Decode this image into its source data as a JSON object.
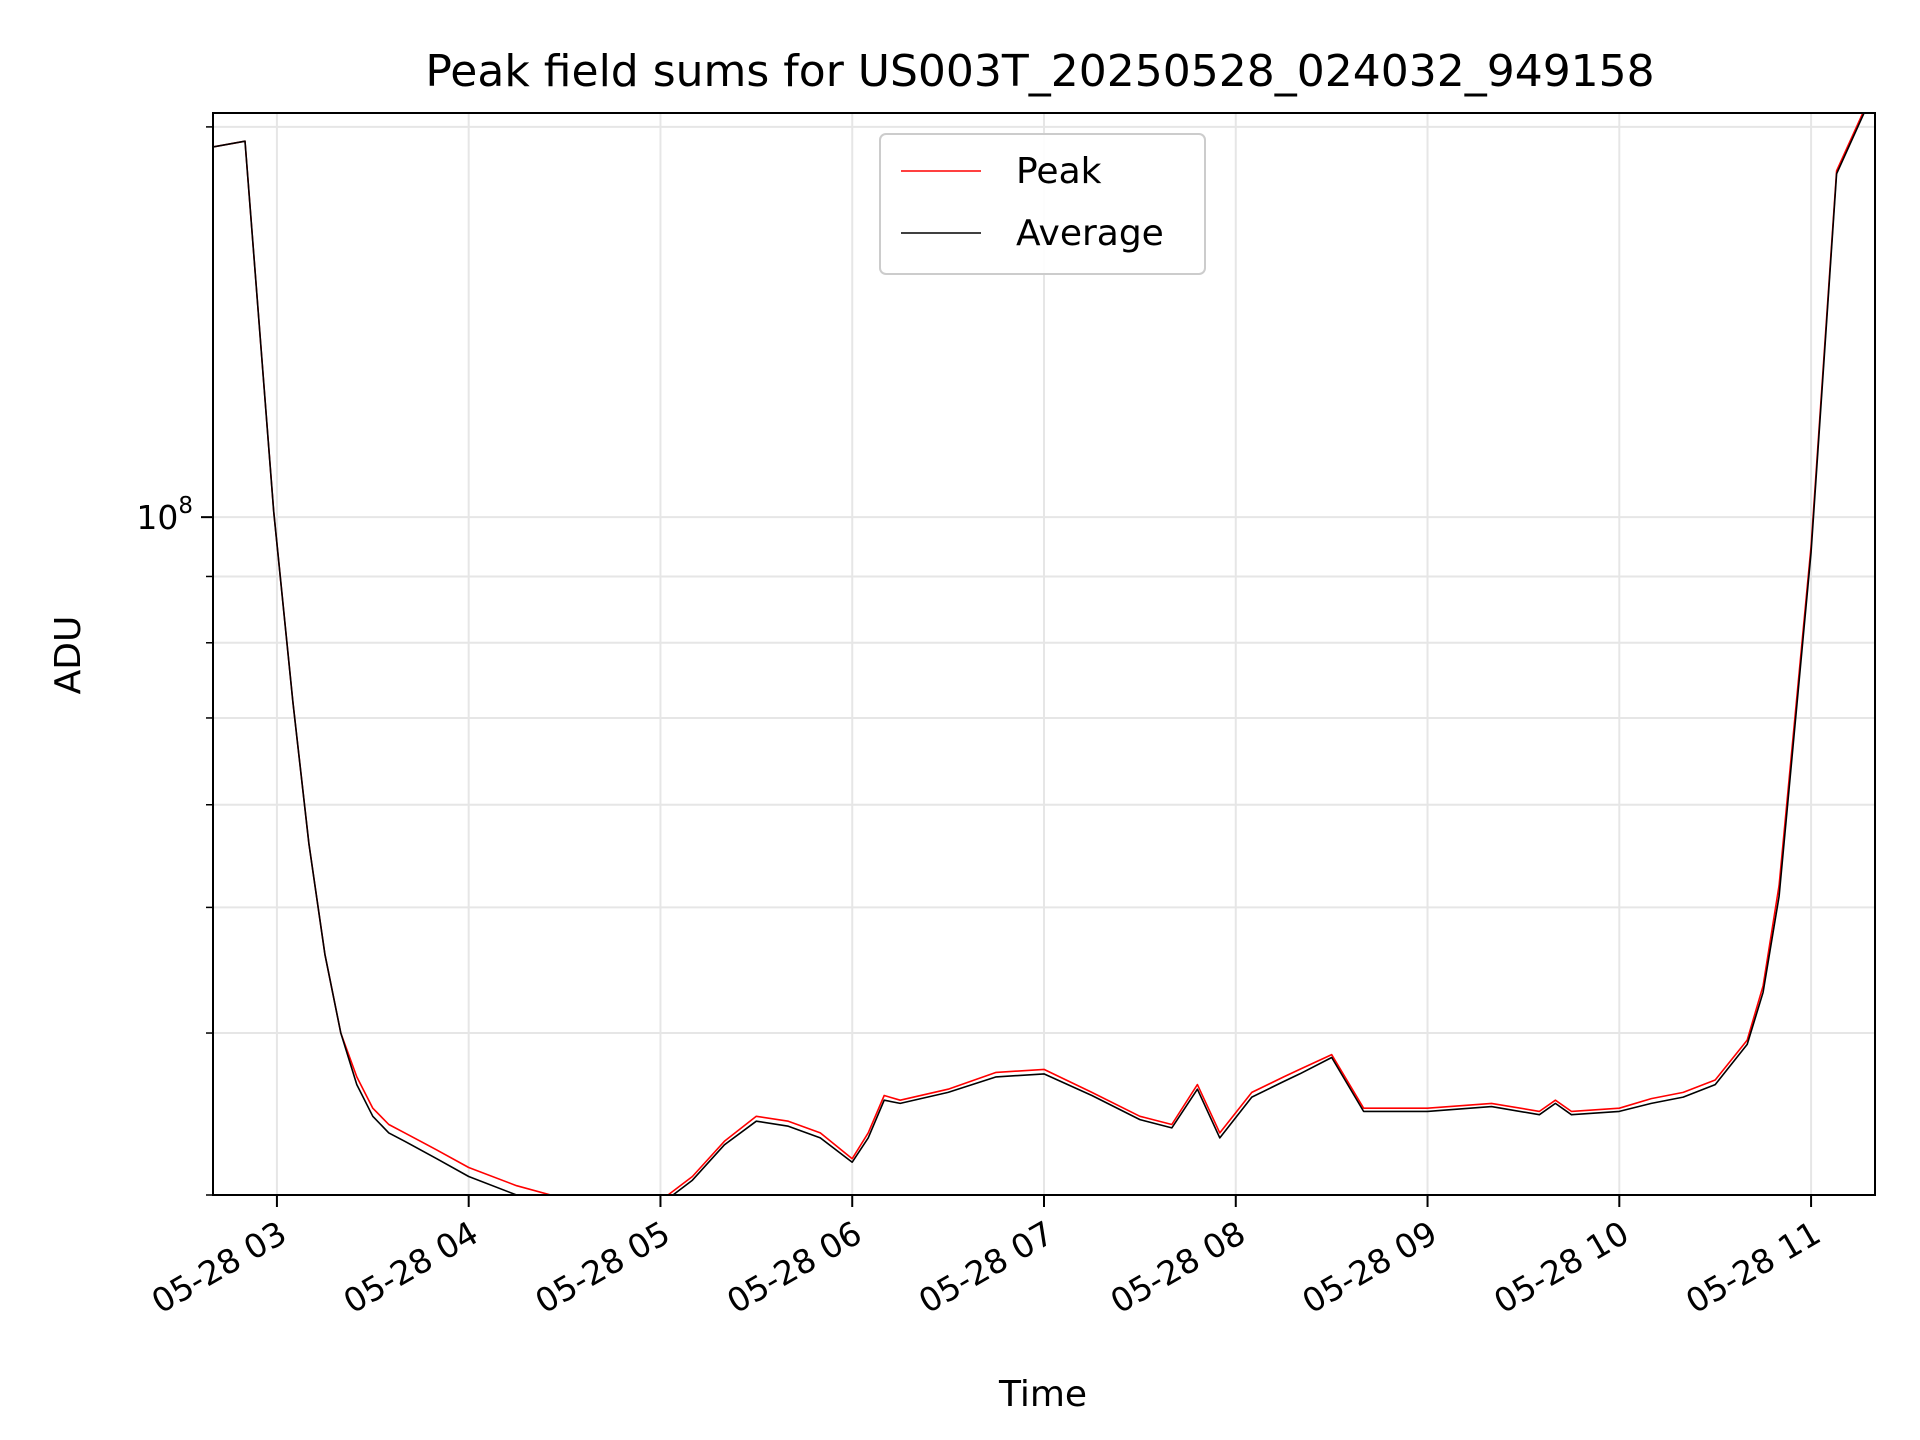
{
  "chart_data": {
    "type": "line",
    "title": "Peak field sums for US003T_20250528_024032_949158",
    "xlabel": "Time",
    "ylabel": "ADU",
    "y_scale": "log",
    "grid": true,
    "legend": "top-center",
    "xlim": [
      "2025-05-28T02:40",
      "2025-05-28T11:20"
    ],
    "ylim": [
      30000000,
      205000000
    ],
    "x_ticks": [
      {
        "t": "2025-05-28T03:00",
        "label": "05-28 03"
      },
      {
        "t": "2025-05-28T04:00",
        "label": "05-28 04"
      },
      {
        "t": "2025-05-28T05:00",
        "label": "05-28 05"
      },
      {
        "t": "2025-05-28T06:00",
        "label": "05-28 06"
      },
      {
        "t": "2025-05-28T07:00",
        "label": "05-28 07"
      },
      {
        "t": "2025-05-28T08:00",
        "label": "05-28 08"
      },
      {
        "t": "2025-05-28T09:00",
        "label": "05-28 09"
      },
      {
        "t": "2025-05-28T10:00",
        "label": "05-28 10"
      },
      {
        "t": "2025-05-28T11:00",
        "label": "05-28 11"
      }
    ],
    "y_ticks": [
      {
        "value": 100000000,
        "label": "10",
        "exp": "8"
      }
    ],
    "y_minor_ticks": [
      30000000,
      40000000,
      50000000,
      60000000,
      70000000,
      80000000,
      90000000,
      200000000
    ],
    "series": [
      {
        "name": "Peak",
        "color": "#ff0000",
        "x": [
          "2025-05-28T02:40",
          "2025-05-28T02:50",
          "2025-05-28T02:59",
          "2025-05-28T03:05",
          "2025-05-28T03:10",
          "2025-05-28T03:15",
          "2025-05-28T03:20",
          "2025-05-28T03:25",
          "2025-05-28T03:30",
          "2025-05-28T03:35",
          "2025-05-28T03:40",
          "2025-05-28T03:50",
          "2025-05-28T04:00",
          "2025-05-28T04:15",
          "2025-05-28T04:30",
          "2025-05-28T04:45",
          "2025-05-28T05:00",
          "2025-05-28T05:10",
          "2025-05-28T05:20",
          "2025-05-28T05:30",
          "2025-05-28T05:40",
          "2025-05-28T05:50",
          "2025-05-28T06:00",
          "2025-05-28T06:05",
          "2025-05-28T06:10",
          "2025-05-28T06:15",
          "2025-05-28T06:30",
          "2025-05-28T06:45",
          "2025-05-28T07:00",
          "2025-05-28T07:15",
          "2025-05-28T07:30",
          "2025-05-28T07:40",
          "2025-05-28T07:48",
          "2025-05-28T07:55",
          "2025-05-28T08:05",
          "2025-05-28T08:15",
          "2025-05-28T08:20",
          "2025-05-28T08:30",
          "2025-05-28T08:40",
          "2025-05-28T09:00",
          "2025-05-28T09:20",
          "2025-05-28T09:35",
          "2025-05-28T09:40",
          "2025-05-28T09:45",
          "2025-05-28T10:00",
          "2025-05-28T10:10",
          "2025-05-28T10:20",
          "2025-05-28T10:30",
          "2025-05-28T10:40",
          "2025-05-28T10:45",
          "2025-05-28T10:50",
          "2025-05-28T11:00",
          "2025-05-28T11:08",
          "2025-05-28T11:20"
        ],
        "values": [
          193000000,
          195000000,
          101000000,
          72000000,
          56000000,
          46000000,
          40000000,
          37000000,
          35000000,
          34000000,
          33500000,
          32500000,
          31500000,
          30500000,
          29800000,
          29500000,
          29700000,
          31000000,
          33000000,
          34500000,
          34200000,
          33500000,
          32000000,
          33500000,
          35800000,
          35500000,
          36200000,
          37300000,
          37500000,
          36000000,
          34500000,
          34000000,
          36500000,
          33500000,
          36000000,
          37000000,
          37500000,
          38500000,
          35000000,
          35000000,
          35300000,
          34800000,
          35500000,
          34800000,
          35000000,
          35600000,
          36000000,
          36800000,
          39500000,
          43500000,
          52000000,
          95000000,
          185000000,
          215000000
        ]
      },
      {
        "name": "Average",
        "color": "#000000",
        "x": [
          "2025-05-28T02:40",
          "2025-05-28T02:50",
          "2025-05-28T02:59",
          "2025-05-28T03:05",
          "2025-05-28T03:10",
          "2025-05-28T03:15",
          "2025-05-28T03:20",
          "2025-05-28T03:25",
          "2025-05-28T03:30",
          "2025-05-28T03:35",
          "2025-05-28T03:40",
          "2025-05-28T03:50",
          "2025-05-28T04:00",
          "2025-05-28T04:15",
          "2025-05-28T04:30",
          "2025-05-28T04:45",
          "2025-05-28T05:00",
          "2025-05-28T05:10",
          "2025-05-28T05:20",
          "2025-05-28T05:30",
          "2025-05-28T05:40",
          "2025-05-28T05:50",
          "2025-05-28T06:00",
          "2025-05-28T06:05",
          "2025-05-28T06:10",
          "2025-05-28T06:15",
          "2025-05-28T06:30",
          "2025-05-28T06:45",
          "2025-05-28T07:00",
          "2025-05-28T07:15",
          "2025-05-28T07:30",
          "2025-05-28T07:40",
          "2025-05-28T07:48",
          "2025-05-28T07:55",
          "2025-05-28T08:05",
          "2025-05-28T08:15",
          "2025-05-28T08:20",
          "2025-05-28T08:30",
          "2025-05-28T08:40",
          "2025-05-28T09:00",
          "2025-05-28T09:20",
          "2025-05-28T09:35",
          "2025-05-28T09:40",
          "2025-05-28T09:45",
          "2025-05-28T10:00",
          "2025-05-28T10:10",
          "2025-05-28T10:20",
          "2025-05-28T10:30",
          "2025-05-28T10:40",
          "2025-05-28T10:45",
          "2025-05-28T10:50",
          "2025-05-28T11:00",
          "2025-05-28T11:08",
          "2025-05-28T11:20"
        ],
        "values": [
          193000000,
          195000000,
          101000000,
          72000000,
          56000000,
          46000000,
          40000000,
          36500000,
          34500000,
          33500000,
          33000000,
          32000000,
          31000000,
          30000000,
          29300000,
          29300000,
          29500000,
          30800000,
          32800000,
          34200000,
          33900000,
          33200000,
          31800000,
          33200000,
          35500000,
          35300000,
          36000000,
          37000000,
          37200000,
          35800000,
          34300000,
          33800000,
          36200000,
          33200000,
          35700000,
          36700000,
          37200000,
          38300000,
          34800000,
          34800000,
          35100000,
          34600000,
          35300000,
          34600000,
          34800000,
          35300000,
          35700000,
          36500000,
          39200000,
          43000000,
          51000000,
          94000000,
          184000000,
          214000000
        ]
      }
    ]
  }
}
